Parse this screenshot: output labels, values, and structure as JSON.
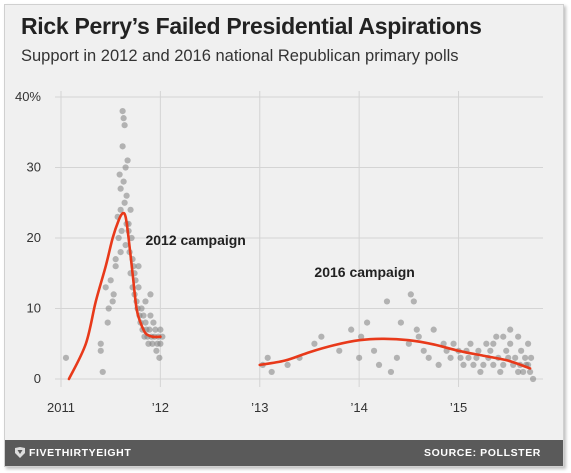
{
  "title": "Rick Perry’s Failed Presidential Aspirations",
  "subtitle": "Support in 2012 and 2016 national Republican primary polls",
  "footer": {
    "brand": "FIVETHIRTYEIGHT",
    "source": "SOURCE: POLLSTER",
    "logo_icon": "fivethirtyeight-logo-icon"
  },
  "colors": {
    "trend": "#e8391a",
    "dots": "#808080",
    "grid": "#d4d4d4",
    "background": "#f0f0f0"
  },
  "chart_data": {
    "type": "scatter",
    "x_range": [
      2011.0,
      2015.85
    ],
    "ylim": [
      0,
      40
    ],
    "yticks": [
      0,
      10,
      20,
      30,
      40
    ],
    "ytick_labels": [
      "0",
      "10",
      "20",
      "30",
      "40%"
    ],
    "xticks": [
      2011,
      2012,
      2013,
      2014,
      2015
    ],
    "xtick_labels": [
      "2011",
      "’12",
      "’13",
      "’14",
      "’15"
    ],
    "annotations": [
      {
        "text": "2012 campaign",
        "x": 2011.85,
        "y": 19
      },
      {
        "text": "2016 campaign",
        "x": 2013.55,
        "y": 14.5
      }
    ],
    "trend_2012": {
      "x": [
        2011.08,
        2011.25,
        2011.35,
        2011.45,
        2011.52,
        2011.58,
        2011.62,
        2011.65,
        2011.68,
        2011.72,
        2011.76,
        2011.8,
        2011.85,
        2011.92,
        2012.0
      ],
      "y": [
        0,
        5,
        11,
        16,
        20,
        22.5,
        23.5,
        23,
        20,
        15,
        10,
        8,
        6.5,
        6,
        6
      ]
    },
    "trend_2016": {
      "x": [
        2013.0,
        2013.25,
        2013.5,
        2013.75,
        2014.0,
        2014.25,
        2014.5,
        2014.75,
        2015.0,
        2015.25,
        2015.5,
        2015.72
      ],
      "y": [
        2,
        2.6,
        3.8,
        4.8,
        5.5,
        5.7,
        5.5,
        4.9,
        4,
        3.3,
        2.6,
        1.5
      ]
    },
    "points_2012": {
      "x": [
        2011.05,
        2011.4,
        2011.4,
        2011.42,
        2011.45,
        2011.47,
        2011.5,
        2011.52,
        2011.55,
        2011.55,
        2011.57,
        2011.58,
        2011.59,
        2011.6,
        2011.6,
        2011.61,
        2011.62,
        2011.62,
        2011.63,
        2011.63,
        2011.64,
        2011.64,
        2011.65,
        2011.65,
        2011.66,
        2011.66,
        2011.67,
        2011.68,
        2011.69,
        2011.7,
        2011.7,
        2011.71,
        2011.72,
        2011.72,
        2011.73,
        2011.74,
        2011.75,
        2011.76,
        2011.77,
        2011.78,
        2011.79,
        2011.8,
        2011.81,
        2011.82,
        2011.83,
        2011.84,
        2011.85,
        2011.86,
        2011.87,
        2011.88,
        2011.89,
        2011.9,
        2011.91,
        2011.92,
        2011.93,
        2011.94,
        2011.95,
        2011.96,
        2011.97,
        2011.98,
        2011.99,
        2012.0,
        2012.0,
        2012.02,
        2011.9,
        2011.85,
        2011.78,
        2011.74,
        2011.68,
        2011.6,
        2011.53,
        2011.48
      ],
      "y": [
        3,
        5,
        4,
        1,
        13,
        8,
        14,
        11,
        17,
        16,
        23,
        20,
        29,
        27,
        24,
        21,
        38,
        33,
        37,
        28,
        36,
        25,
        30,
        19,
        26,
        22,
        31,
        22,
        18,
        24,
        15,
        20,
        13,
        17,
        16,
        12,
        14,
        11,
        10,
        13,
        9,
        8,
        10,
        7,
        9,
        6,
        8,
        7,
        6,
        5,
        7,
        9,
        6,
        5,
        8,
        6,
        7,
        4,
        5,
        6,
        3,
        7,
        5,
        6,
        12,
        11,
        16,
        15,
        21,
        18,
        12,
        10
      ]
    },
    "points_2016": {
      "x": [
        2013.03,
        2013.08,
        2013.12,
        2013.28,
        2013.4,
        2013.55,
        2013.62,
        2013.8,
        2013.92,
        2014.0,
        2014.02,
        2014.08,
        2014.15,
        2014.2,
        2014.28,
        2014.32,
        2014.38,
        2014.42,
        2014.5,
        2014.52,
        2014.55,
        2014.58,
        2014.6,
        2014.65,
        2014.7,
        2014.75,
        2014.8,
        2014.85,
        2014.88,
        2014.92,
        2014.95,
        2015.0,
        2015.02,
        2015.05,
        2015.08,
        2015.1,
        2015.12,
        2015.15,
        2015.18,
        2015.2,
        2015.22,
        2015.25,
        2015.28,
        2015.3,
        2015.32,
        2015.35,
        2015.38,
        2015.4,
        2015.42,
        2015.45,
        2015.48,
        2015.5,
        2015.52,
        2015.55,
        2015.57,
        2015.6,
        2015.62,
        2015.63,
        2015.65,
        2015.67,
        2015.68,
        2015.7,
        2015.72,
        2015.73,
        2015.75,
        2015.52,
        2015.45,
        2015.35,
        2015.6,
        2015.7
      ],
      "y": [
        2,
        3,
        1,
        2,
        3,
        5,
        6,
        4,
        7,
        3,
        6,
        8,
        4,
        2,
        11,
        1,
        3,
        8,
        5,
        12,
        11,
        7,
        6,
        4,
        3,
        7,
        2,
        5,
        4,
        3,
        5,
        4,
        3,
        2,
        4,
        3,
        5,
        2,
        3,
        4,
        1,
        2,
        5,
        3,
        4,
        2,
        6,
        3,
        1,
        2,
        4,
        3,
        5,
        2,
        3,
        6,
        2,
        4,
        1,
        3,
        2,
        5,
        1,
        3,
        0,
        7,
        6,
        5,
        1,
        2
      ]
    }
  }
}
